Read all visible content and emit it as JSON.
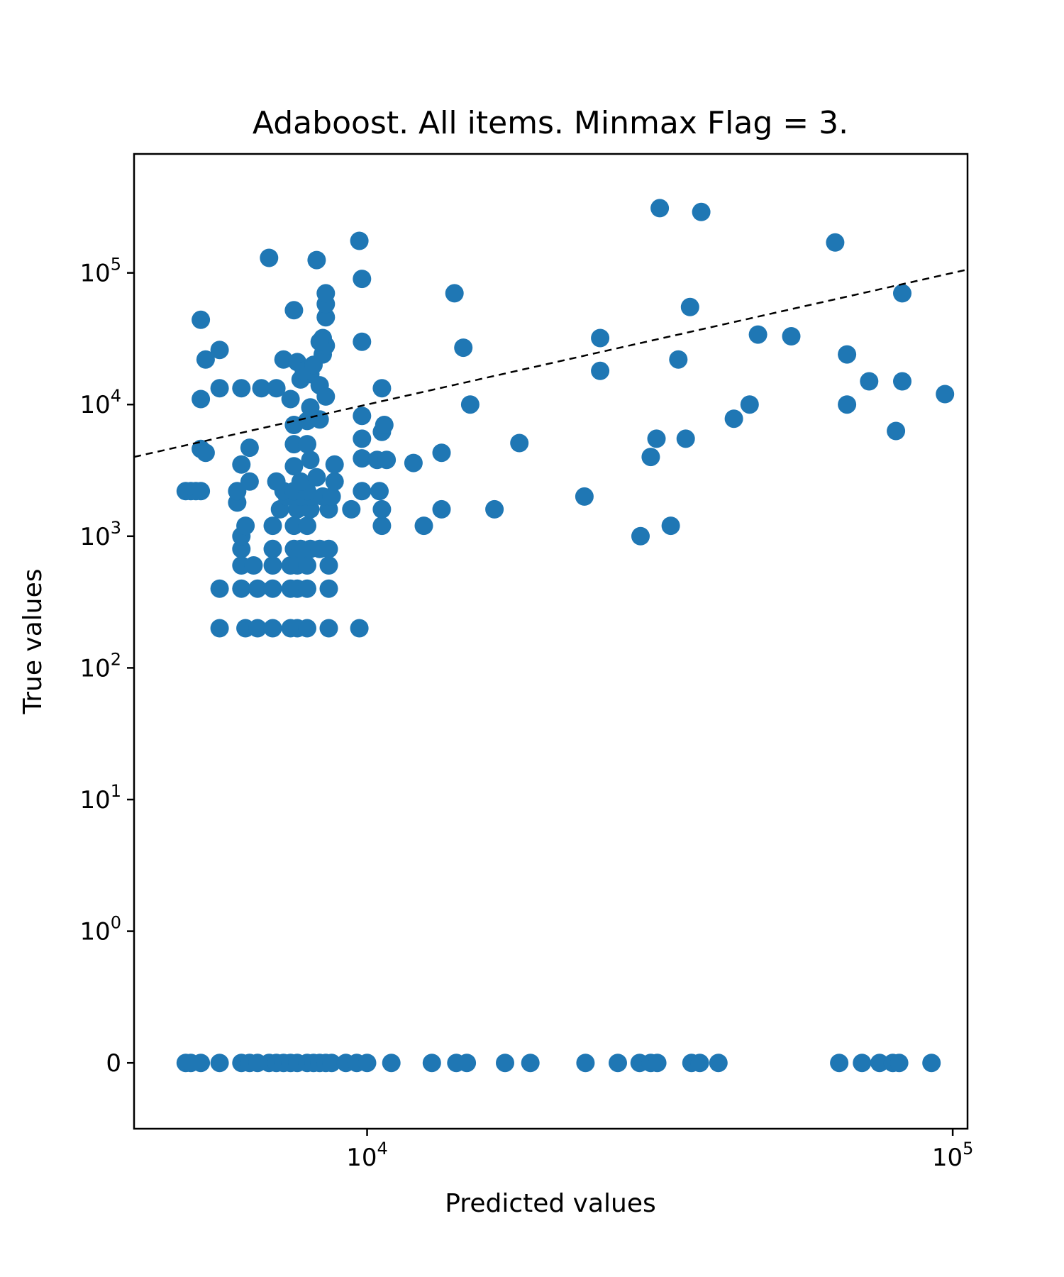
{
  "chart_data": {
    "type": "scatter",
    "title": "Adaboost. All items. Minmax Flag = 3.",
    "xlabel": "Predicted values",
    "ylabel": "True values",
    "xscale": "log",
    "yscale": "symlog",
    "xlim": [
      4000,
      106000
    ],
    "ylim": [
      -0.5,
      800000
    ],
    "marker_color": "#1f77b4",
    "reference_line": {
      "style": "dashed",
      "color": "#000000",
      "from": [
        4000,
        4000
      ],
      "to": [
        1000000,
        1000000
      ]
    },
    "x_ticks": [
      {
        "value": 10000,
        "base": "10",
        "exp": "4"
      },
      {
        "value": 100000,
        "base": "10",
        "exp": "5"
      }
    ],
    "y_ticks": [
      {
        "value": 0,
        "base": "0",
        "exp": ""
      },
      {
        "value": 1,
        "base": "10",
        "exp": "0"
      },
      {
        "value": 10,
        "base": "10",
        "exp": "1"
      },
      {
        "value": 100,
        "base": "10",
        "exp": "2"
      },
      {
        "value": 1000,
        "base": "10",
        "exp": "3"
      },
      {
        "value": 10000,
        "base": "10",
        "exp": "4"
      },
      {
        "value": 100000,
        "base": "10",
        "exp": "5"
      }
    ],
    "points": [
      [
        4900,
        0
      ],
      [
        5000,
        0
      ],
      [
        5200,
        0
      ],
      [
        5600,
        0
      ],
      [
        6100,
        0
      ],
      [
        6300,
        0
      ],
      [
        6500,
        0
      ],
      [
        6800,
        0
      ],
      [
        7000,
        0
      ],
      [
        7200,
        0
      ],
      [
        7400,
        0
      ],
      [
        7600,
        0
      ],
      [
        7900,
        0
      ],
      [
        8100,
        0
      ],
      [
        8300,
        0
      ],
      [
        8500,
        0
      ],
      [
        8700,
        0
      ],
      [
        9200,
        0
      ],
      [
        9600,
        0
      ],
      [
        10000,
        0
      ],
      [
        11000,
        0
      ],
      [
        12900,
        0
      ],
      [
        14200,
        0
      ],
      [
        14800,
        0
      ],
      [
        17200,
        0
      ],
      [
        19000,
        0
      ],
      [
        23600,
        0
      ],
      [
        26800,
        0
      ],
      [
        29200,
        0
      ],
      [
        30500,
        0
      ],
      [
        31300,
        0
      ],
      [
        35800,
        0
      ],
      [
        37000,
        0
      ],
      [
        39800,
        0
      ],
      [
        64000,
        0
      ],
      [
        70000,
        0
      ],
      [
        75000,
        0
      ],
      [
        79000,
        0
      ],
      [
        81000,
        0
      ],
      [
        92000,
        0
      ],
      [
        5600,
        200
      ],
      [
        6200,
        200
      ],
      [
        6500,
        200
      ],
      [
        6900,
        200
      ],
      [
        7400,
        200
      ],
      [
        7600,
        200
      ],
      [
        7900,
        200
      ],
      [
        8600,
        200
      ],
      [
        9700,
        200
      ],
      [
        5600,
        400
      ],
      [
        6100,
        400
      ],
      [
        6500,
        400
      ],
      [
        6900,
        400
      ],
      [
        7400,
        400
      ],
      [
        7600,
        400
      ],
      [
        7900,
        400
      ],
      [
        8600,
        400
      ],
      [
        6100,
        600
      ],
      [
        6400,
        600
      ],
      [
        6900,
        600
      ],
      [
        7400,
        600
      ],
      [
        7600,
        600
      ],
      [
        7900,
        600
      ],
      [
        8600,
        600
      ],
      [
        6100,
        800
      ],
      [
        6900,
        800
      ],
      [
        7500,
        800
      ],
      [
        7700,
        800
      ],
      [
        8000,
        800
      ],
      [
        8300,
        800
      ],
      [
        8600,
        800
      ],
      [
        6100,
        1000
      ],
      [
        6200,
        1200
      ],
      [
        6900,
        1200
      ],
      [
        7500,
        1200
      ],
      [
        7900,
        1200
      ],
      [
        10600,
        1200
      ],
      [
        12500,
        1200
      ],
      [
        29300,
        1000
      ],
      [
        33000,
        1200
      ],
      [
        7100,
        1600
      ],
      [
        7600,
        1600
      ],
      [
        8000,
        1600
      ],
      [
        8600,
        1600
      ],
      [
        9400,
        1600
      ],
      [
        10600,
        1600
      ],
      [
        13400,
        1600
      ],
      [
        16500,
        1600
      ],
      [
        6000,
        1800
      ],
      [
        7300,
        2000
      ],
      [
        7700,
        2000
      ],
      [
        8000,
        2000
      ],
      [
        8400,
        2000
      ],
      [
        8700,
        2000
      ],
      [
        23500,
        2000
      ],
      [
        4900,
        2200
      ],
      [
        5000,
        2200
      ],
      [
        5100,
        2200
      ],
      [
        5200,
        2200
      ],
      [
        6000,
        2200
      ],
      [
        7200,
        2200
      ],
      [
        7500,
        2200
      ],
      [
        7900,
        2200
      ],
      [
        9800,
        2200
      ],
      [
        10500,
        2200
      ],
      [
        6300,
        2600
      ],
      [
        7000,
        2600
      ],
      [
        7700,
        2600
      ],
      [
        8200,
        2800
      ],
      [
        8800,
        2600
      ],
      [
        6100,
        3500
      ],
      [
        7500,
        3400
      ],
      [
        8000,
        3800
      ],
      [
        8800,
        3500
      ],
      [
        7500,
        5000
      ],
      [
        7900,
        5000
      ],
      [
        6300,
        4700
      ],
      [
        5200,
        4600
      ],
      [
        5300,
        4300
      ],
      [
        9800,
        5500
      ],
      [
        10600,
        6200
      ],
      [
        10700,
        7000
      ],
      [
        9800,
        8200
      ],
      [
        7500,
        7000
      ],
      [
        7900,
        7500
      ],
      [
        8300,
        7700
      ],
      [
        8000,
        9500
      ],
      [
        9800,
        3900
      ],
      [
        10400,
        3800
      ],
      [
        10800,
        3800
      ],
      [
        12000,
        3600
      ],
      [
        13400,
        4300
      ],
      [
        18200,
        5100
      ],
      [
        5200,
        11000
      ],
      [
        5600,
        13300
      ],
      [
        6100,
        13300
      ],
      [
        6600,
        13300
      ],
      [
        7000,
        13300
      ],
      [
        7400,
        11000
      ],
      [
        7700,
        15500
      ],
      [
        8000,
        17000
      ],
      [
        8300,
        14000
      ],
      [
        8500,
        11500
      ],
      [
        10600,
        13300
      ],
      [
        5300,
        22000
      ],
      [
        5600,
        26000
      ],
      [
        7200,
        22000
      ],
      [
        7600,
        21000
      ],
      [
        7800,
        18000
      ],
      [
        8100,
        20000
      ],
      [
        8400,
        24000
      ],
      [
        8500,
        28000
      ],
      [
        8400,
        32000
      ],
      [
        8300,
        30000
      ],
      [
        5200,
        44000
      ],
      [
        7500,
        52000
      ],
      [
        8500,
        46000
      ],
      [
        8500,
        58000
      ],
      [
        8500,
        70000
      ],
      [
        9800,
        30000
      ],
      [
        9800,
        90000
      ],
      [
        9700,
        175000
      ],
      [
        6800,
        130000
      ],
      [
        8200,
        125000
      ],
      [
        14100,
        70000
      ],
      [
        14600,
        27000
      ],
      [
        15000,
        10000
      ],
      [
        25000,
        32000
      ],
      [
        25000,
        18000
      ],
      [
        30500,
        4000
      ],
      [
        31200,
        5500
      ],
      [
        35000,
        5500
      ],
      [
        34000,
        22000
      ],
      [
        31600,
        310000
      ],
      [
        37200,
        290000
      ],
      [
        35600,
        55000
      ],
      [
        42300,
        7800
      ],
      [
        45000,
        10000
      ],
      [
        46500,
        34000
      ],
      [
        53000,
        33000
      ],
      [
        63000,
        170000
      ],
      [
        66000,
        24000
      ],
      [
        66000,
        10000
      ],
      [
        72000,
        15000
      ],
      [
        80000,
        6300
      ],
      [
        82000,
        15000
      ],
      [
        82000,
        70000
      ],
      [
        97000,
        12000
      ]
    ]
  }
}
